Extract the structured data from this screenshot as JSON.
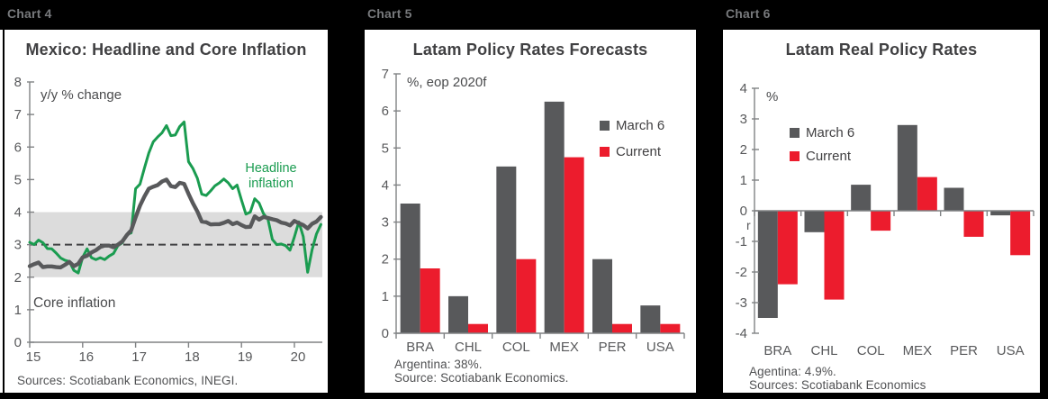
{
  "page": {
    "background": "#000000"
  },
  "colors": {
    "green": "#1a9c50",
    "gray": "#58595b",
    "red": "#ec1c2d",
    "band": "#dcdcdc",
    "dash": "#404042",
    "axis": "#808284",
    "tick_text": "#58595b",
    "title_text": "#404042",
    "header_text": "#77797c"
  },
  "panels": [
    {
      "header": "Chart 4"
    },
    {
      "header": "Chart 5"
    },
    {
      "header": "Chart 6"
    }
  ],
  "chart_data": [
    {
      "type": "line",
      "title": "Mexico: Headline and Core Inflation",
      "unit_label": "y/y % change",
      "footer": "Sources: Scotiabank Economics, INEGI.",
      "x_ticks": [
        "15",
        "16",
        "17",
        "18",
        "19",
        "20"
      ],
      "x_start_year": 2015,
      "frequency": "monthly",
      "ylim": [
        0,
        8
      ],
      "y_ticks": [
        0,
        1,
        2,
        3,
        4,
        5,
        6,
        7,
        8
      ],
      "target_band": [
        2,
        4
      ],
      "target_line": 3,
      "annotations": {
        "headline": "Headline\ninflation",
        "core": "Core inflation"
      },
      "series": [
        {
          "name": "Headline inflation",
          "color": "green",
          "values": [
            3.07,
            3.0,
            3.14,
            3.06,
            2.88,
            2.87,
            2.74,
            2.59,
            2.52,
            2.48,
            2.21,
            2.13,
            2.61,
            2.87,
            2.6,
            2.54,
            2.6,
            2.54,
            2.65,
            2.73,
            2.97,
            3.06,
            3.31,
            3.36,
            4.72,
            4.86,
            5.35,
            5.82,
            6.16,
            6.31,
            6.44,
            6.66,
            6.35,
            6.37,
            6.63,
            6.77,
            5.55,
            5.34,
            5.04,
            4.55,
            4.51,
            4.65,
            4.81,
            4.9,
            5.02,
            4.9,
            4.72,
            4.83,
            4.37,
            3.94,
            4.0,
            4.41,
            4.28,
            3.95,
            3.78,
            3.16,
            3.0,
            3.02,
            2.97,
            2.83,
            3.24,
            3.7,
            3.25,
            2.15,
            2.84,
            3.33,
            3.62
          ]
        },
        {
          "name": "Core inflation",
          "color": "gray",
          "values": [
            2.34,
            2.4,
            2.45,
            2.31,
            2.33,
            2.33,
            2.31,
            2.3,
            2.38,
            2.47,
            2.34,
            2.41,
            2.61,
            2.66,
            2.76,
            2.83,
            2.93,
            2.97,
            2.97,
            2.92,
            3.0,
            3.1,
            3.29,
            3.44,
            3.84,
            4.2,
            4.48,
            4.72,
            4.78,
            4.83,
            4.94,
            5.0,
            4.8,
            4.77,
            4.9,
            4.87,
            4.56,
            4.27,
            4.02,
            3.71,
            3.69,
            3.62,
            3.63,
            3.63,
            3.67,
            3.73,
            3.63,
            3.68,
            3.6,
            3.54,
            3.55,
            3.87,
            3.77,
            3.85,
            3.82,
            3.78,
            3.75,
            3.68,
            3.65,
            3.59,
            3.73,
            3.66,
            3.6,
            3.5,
            3.64,
            3.71,
            3.85
          ]
        }
      ]
    },
    {
      "type": "bar",
      "title": "Latam Policy Rates Forecasts",
      "unit_label": "%, eop 2020f",
      "note": "Argentina: 38%.",
      "footer": "Source: Scotiabank Economics.",
      "categories": [
        "BRA",
        "CHL",
        "COL",
        "MEX",
        "PER",
        "USA"
      ],
      "ylim": [
        0,
        7
      ],
      "y_ticks": [
        0,
        1,
        2,
        3,
        4,
        5,
        6,
        7
      ],
      "legend_position": "right",
      "series": [
        {
          "name": "March 6",
          "color": "gray",
          "values": [
            3.5,
            1.0,
            4.5,
            6.25,
            2.0,
            0.75
          ]
        },
        {
          "name": "Current",
          "color": "red",
          "values": [
            1.75,
            0.25,
            2.0,
            4.75,
            0.25,
            0.25
          ]
        }
      ]
    },
    {
      "type": "bar",
      "title": "Latam Real Policy Rates",
      "unit_label": "%",
      "note": "Agentina: 4.9%.",
      "footer": "Sources: Scotiabank Economics",
      "stray_text": "r",
      "categories": [
        "BRA",
        "CHL",
        "COL",
        "MEX",
        "PER",
        "USA"
      ],
      "ylim": [
        -4,
        4
      ],
      "y_ticks": [
        -4,
        -3,
        -2,
        -1,
        0,
        1,
        2,
        3,
        4
      ],
      "legend_position": "upper-left",
      "series": [
        {
          "name": "March 6",
          "color": "gray",
          "values": [
            -3.5,
            -0.7,
            0.85,
            2.8,
            0.75,
            -0.15
          ]
        },
        {
          "name": "Current",
          "color": "red",
          "values": [
            -2.4,
            -2.9,
            -0.65,
            1.1,
            -0.85,
            -1.45
          ]
        }
      ]
    }
  ]
}
